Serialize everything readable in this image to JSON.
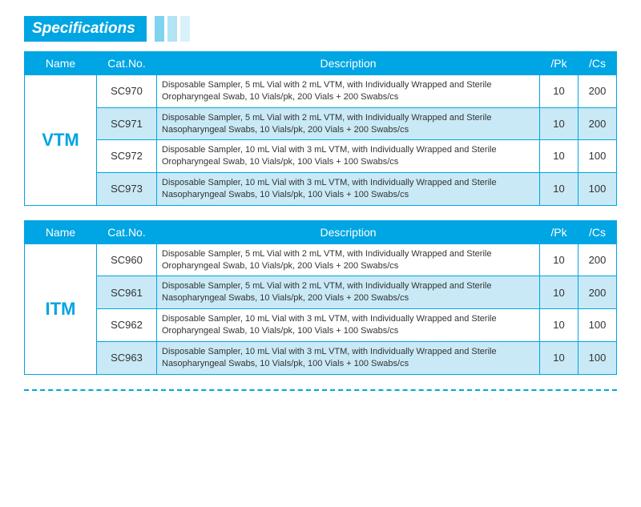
{
  "title": "Specifications",
  "columns": {
    "name": "Name",
    "cat": "Cat.No.",
    "desc": "Description",
    "pk": "/Pk",
    "cs": "/Cs"
  },
  "colors": {
    "primary": "#00a5e3",
    "alt_row_bg": "#c9e9f6",
    "text": "#333333",
    "white": "#ffffff",
    "stripe1": "#7fd3ef",
    "stripe2": "#b3e4f5",
    "stripe3": "#d9f1fa",
    "dash": "#00a5e3"
  },
  "tables": [
    {
      "group_name": "VTM",
      "rows": [
        {
          "cat": "SC970",
          "desc": "Disposable Sampler, 5 mL Vial with 2 mL VTM, with Individually Wrapped and Sterile Oropharyngeal Swab, 10 Vials/pk, 200 Vials + 200 Swabs/cs",
          "pk": "10",
          "cs": "200"
        },
        {
          "cat": "SC971",
          "desc": "Disposable Sampler, 5 mL Vial with 2 mL VTM, with Individually Wrapped and Sterile Nasopharyngeal Swabs, 10 Vials/pk, 200 Vials + 200 Swabs/cs",
          "pk": "10",
          "cs": "200"
        },
        {
          "cat": "SC972",
          "desc": "Disposable Sampler, 10 mL Vial with 3 mL VTM, with Individually Wrapped and Sterile Oropharyngeal Swab, 10 Vials/pk, 100 Vials + 100 Swabs/cs",
          "pk": "10",
          "cs": "100"
        },
        {
          "cat": "SC973",
          "desc": "Disposable Sampler, 10 mL Vial with 3 mL VTM, with Individually Wrapped and Sterile Nasopharyngeal Swabs, 10 Vials/pk, 100 Vials + 100 Swabs/cs",
          "pk": "10",
          "cs": "100"
        }
      ]
    },
    {
      "group_name": "ITM",
      "rows": [
        {
          "cat": "SC960",
          "desc": "Disposable Sampler, 5 mL Vial with 2 mL VTM, with Individually Wrapped and Sterile Oropharyngeal Swab, 10 Vials/pk, 200 Vials + 200 Swabs/cs",
          "pk": "10",
          "cs": "200"
        },
        {
          "cat": "SC961",
          "desc": "Disposable Sampler, 5 mL Vial with 2 mL VTM, with Individually Wrapped and Sterile Nasopharyngeal Swabs, 10 Vials/pk, 200 Vials + 200 Swabs/cs",
          "pk": "10",
          "cs": "200"
        },
        {
          "cat": "SC962",
          "desc": "Disposable Sampler, 10 mL Vial with 3 mL VTM, with Individually Wrapped and Sterile Oropharyngeal Swab, 10 Vials/pk, 100 Vials + 100 Swabs/cs",
          "pk": "10",
          "cs": "100"
        },
        {
          "cat": "SC963",
          "desc": "Disposable Sampler, 10 mL Vial with 3 mL VTM, with Individually Wrapped and Sterile Nasopharyngeal Swabs, 10 Vials/pk, 100 Vials + 100 Swabs/cs",
          "pk": "10",
          "cs": "100"
        }
      ]
    }
  ]
}
